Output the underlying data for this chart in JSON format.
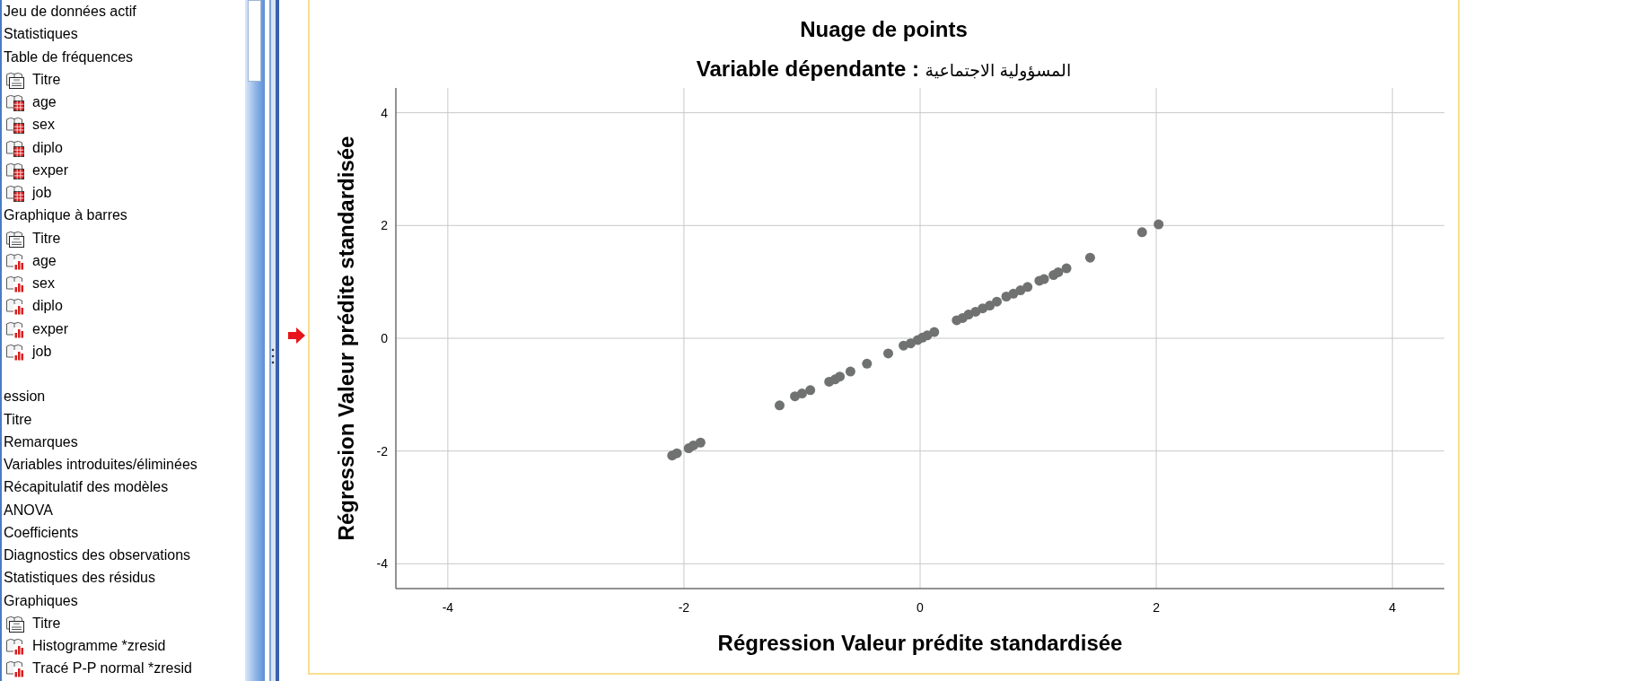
{
  "chart_data": [
    {
      "type": "other",
      "annotations": [
        "Jeu de données actif",
        "Statistiques",
        "Table de fréquences",
        "Titre",
        "age",
        "sex",
        "diplo",
        "exper",
        "job",
        "Graphique à barres",
        "Titre",
        "age",
        "sex",
        "diplo",
        "exper",
        "job",
        "ession",
        "Titre",
        "Remarques",
        "Variables introduites/éliminées",
        "Récapitulatif des modèles",
        "ANOVA",
        "Coefficients",
        "Diagnostics des observations",
        "Statistiques des résidus",
        "Graphiques",
        "Titre",
        "Histogramme *zresid",
        "Tracé P-P normal *zresid"
      ]
    },
    {
      "type": "scatter",
      "title": "Nuage de points",
      "subtitle": "Variable dépendante : المسؤولية الاجتماعية",
      "xlabel": "Régression Valeur prédite standardisée",
      "ylabel": "Régression Valeur prédite standardisée",
      "x": [
        -2.1,
        -2.06,
        -1.96,
        -1.92,
        -1.86,
        -1.19,
        -1.06,
        -1.0,
        -0.93,
        -0.77,
        -0.72,
        -0.68,
        -0.59,
        -0.45,
        -0.27,
        -0.14,
        -0.08,
        -0.02,
        0.02,
        0.06,
        0.12,
        0.31,
        0.36,
        0.41,
        0.47,
        0.53,
        0.59,
        0.65,
        0.73,
        0.79,
        0.85,
        0.91,
        1.01,
        1.05,
        1.13,
        1.17,
        1.24,
        1.44,
        1.88,
        2.02
      ],
      "values": [
        -2.08,
        -2.04,
        -1.95,
        -1.9,
        -1.85,
        -1.19,
        -1.03,
        -0.98,
        -0.92,
        -0.77,
        -0.73,
        -0.68,
        -0.59,
        -0.45,
        -0.27,
        -0.13,
        -0.09,
        -0.03,
        0.01,
        0.05,
        0.11,
        0.32,
        0.36,
        0.42,
        0.47,
        0.53,
        0.58,
        0.65,
        0.74,
        0.79,
        0.85,
        0.91,
        1.02,
        1.05,
        1.12,
        1.17,
        1.24,
        1.43,
        1.88,
        2.02
      ],
      "color": "#6f7270",
      "marker": "circle",
      "xlim": [
        -4.44,
        4.44
      ],
      "ylim": [
        -4.44,
        4.44
      ],
      "xticks": [
        -4,
        -2,
        0,
        2,
        4
      ],
      "yticks": [
        -4,
        -2,
        0,
        2,
        4
      ],
      "grid": true
    }
  ]
}
